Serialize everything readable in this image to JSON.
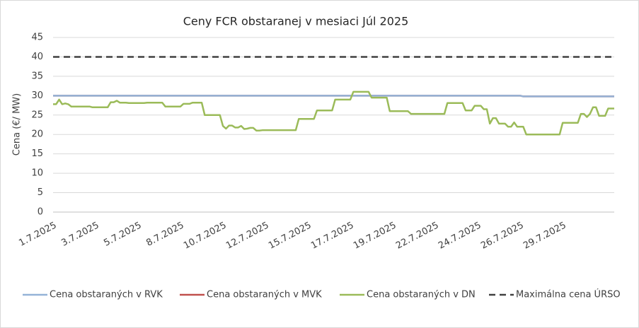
{
  "chart_data": {
    "type": "line",
    "title": "Ceny FCR obstaranej v mesiaci Júl 2025",
    "y_label": "Cena (€/ MW)",
    "ylim": [
      0,
      45
    ],
    "yticks": [
      0,
      5,
      10,
      15,
      20,
      25,
      30,
      35,
      40,
      45
    ],
    "grid": true,
    "legend": "bottom",
    "x": [
      "1.7.2025",
      null,
      null,
      null,
      null,
      null,
      null,
      null,
      null,
      null,
      null,
      null,
      null,
      null,
      "3.7.2025",
      null,
      null,
      null,
      null,
      null,
      null,
      null,
      null,
      null,
      null,
      null,
      null,
      null,
      "5.7.2025",
      null,
      null,
      null,
      null,
      null,
      null,
      null,
      null,
      null,
      null,
      null,
      null,
      null,
      "8.7.2025",
      null,
      null,
      null,
      null,
      null,
      null,
      null,
      null,
      null,
      null,
      null,
      null,
      null,
      "10.7.2025",
      null,
      null,
      null,
      null,
      null,
      null,
      null,
      null,
      null,
      null,
      null,
      null,
      null,
      "12.7.2025",
      null,
      null,
      null,
      null,
      null,
      null,
      null,
      null,
      null,
      null,
      null,
      null,
      null,
      "15.7.2025",
      null,
      null,
      null,
      null,
      null,
      null,
      null,
      null,
      null,
      null,
      null,
      null,
      null,
      "17.7.2025",
      null,
      null,
      null,
      null,
      null,
      null,
      null,
      null,
      null,
      null,
      null,
      null,
      null,
      "19.7.2025",
      null,
      null,
      null,
      null,
      null,
      null,
      null,
      null,
      null,
      null,
      null,
      null,
      null,
      "22.7.2025",
      null,
      null,
      null,
      null,
      null,
      null,
      null,
      null,
      null,
      null,
      null,
      null,
      null,
      "24.7.2025",
      null,
      null,
      null,
      null,
      null,
      null,
      null,
      null,
      null,
      null,
      null,
      null,
      null,
      "26.7.2025",
      null,
      null,
      null,
      null,
      null,
      null,
      null,
      null,
      null,
      null,
      null,
      null,
      null,
      "29.7.2025",
      null,
      null,
      null,
      null,
      null,
      null,
      null,
      null,
      null,
      null,
      null,
      null,
      null,
      null,
      null,
      null,
      null
    ],
    "series": [
      {
        "name": "Cena obstaraných v RVK",
        "color": "#95b3d7",
        "style": "solid",
        "values": [
          30,
          30,
          30,
          30,
          30,
          30,
          30,
          30,
          30,
          30,
          30,
          30,
          30,
          30,
          30,
          30,
          30,
          30,
          30,
          30,
          30,
          30,
          30,
          30,
          30,
          30,
          30,
          30,
          30,
          30,
          30,
          30,
          30,
          30,
          30,
          30,
          30,
          30,
          30,
          30,
          30,
          30,
          30,
          30,
          30,
          30,
          30,
          30,
          30,
          30,
          30,
          30,
          30,
          30,
          30,
          30,
          30,
          30,
          30,
          30,
          30,
          30,
          30,
          30,
          30,
          30,
          30,
          30,
          30,
          30,
          30,
          30,
          30,
          30,
          30,
          30,
          30,
          30,
          30,
          30,
          30,
          30,
          30,
          30,
          30,
          30,
          30,
          30,
          30,
          30,
          30,
          30,
          30,
          30,
          30,
          30,
          30,
          30,
          30,
          30,
          30,
          30,
          30,
          30,
          30,
          30,
          30,
          30,
          30,
          30,
          30,
          30,
          30,
          30,
          30,
          30,
          30,
          30,
          30,
          30,
          30,
          30,
          30,
          30,
          30,
          30,
          30,
          30,
          30,
          30,
          30,
          30,
          30,
          30,
          30,
          30,
          30,
          30,
          30,
          30,
          30,
          30,
          30,
          30,
          30,
          30,
          30,
          30,
          30,
          30,
          30,
          30,
          30,
          30,
          30,
          29.8,
          29.8,
          29.8,
          29.8,
          29.8,
          29.8,
          29.8,
          29.8,
          29.8,
          29.8,
          29.8,
          29.8,
          29.8,
          29.8,
          29.8,
          29.8,
          29.8,
          29.8,
          29.8,
          29.8,
          29.8,
          29.8,
          29.8,
          29.8,
          29.8,
          29.8,
          29.8,
          29.8,
          29.8,
          29.8,
          29.8
        ]
      },
      {
        "name": "Cena obstaraných v MVK",
        "color": "#c0504d",
        "style": "solid",
        "values": [
          30,
          30,
          30,
          30,
          30,
          30,
          30,
          30,
          30,
          30,
          30,
          30,
          30,
          30,
          30,
          30,
          30,
          30,
          30,
          30,
          30,
          30,
          30,
          30,
          30,
          30,
          30,
          30,
          30,
          30,
          30,
          30,
          30,
          30,
          30,
          30,
          30,
          30,
          30,
          30,
          30,
          30,
          30,
          30,
          30,
          30,
          30,
          30,
          30,
          30,
          30,
          30,
          30,
          30,
          30,
          30,
          30,
          30,
          30,
          30,
          30,
          30,
          30,
          30,
          30,
          30,
          30,
          30,
          30,
          30,
          30,
          30,
          30,
          30,
          30,
          30,
          30,
          30,
          30,
          30,
          30,
          30,
          30,
          30,
          30,
          30,
          30,
          30,
          30,
          30,
          30,
          30,
          30,
          30,
          30,
          30,
          30,
          30,
          30,
          30,
          30,
          30,
          30,
          30,
          30,
          30,
          30,
          30,
          30,
          30,
          30,
          30,
          30,
          30,
          30,
          30,
          30,
          30,
          30,
          30,
          30,
          30,
          30,
          30,
          30,
          30,
          30,
          30,
          30,
          30,
          30,
          30,
          30,
          30,
          30,
          30,
          30,
          30,
          30,
          30,
          30,
          30,
          30,
          30,
          30,
          30,
          30,
          30,
          30,
          30,
          30,
          30,
          30,
          30,
          30,
          29.8,
          29.8,
          29.8,
          29.8,
          29.8,
          29.8,
          29.8,
          29.8,
          29.8,
          29.8,
          29.8,
          29.8,
          29.8,
          29.8,
          29.8,
          29.8,
          29.8,
          29.8,
          29.8,
          29.8,
          29.8,
          29.8,
          29.8,
          29.8,
          29.8,
          29.8,
          29.8,
          29.8,
          29.8,
          29.8,
          29.8
        ]
      },
      {
        "name": "Cena obstaraných v DN",
        "color": "#9bbb59",
        "style": "solid",
        "values": [
          27.8,
          27.8,
          29,
          27.8,
          28,
          27.8,
          27.2,
          27.2,
          27.2,
          27.2,
          27.2,
          27.2,
          27.2,
          27,
          27,
          27,
          27,
          27,
          27,
          28.3,
          28.3,
          28.7,
          28.2,
          28.2,
          28.2,
          28.1,
          28.1,
          28.1,
          28.1,
          28.1,
          28.1,
          28.2,
          28.2,
          28.2,
          28.2,
          28.2,
          28.2,
          27.2,
          27.2,
          27.2,
          27.2,
          27.2,
          27.2,
          27.9,
          27.9,
          27.9,
          28.2,
          28.2,
          28.2,
          28.2,
          25,
          25,
          25,
          25,
          25,
          25,
          22.2,
          21.5,
          22.3,
          22.3,
          21.8,
          21.8,
          22.2,
          21.4,
          21.5,
          21.7,
          21.7,
          21,
          21,
          21.1,
          21.1,
          21.1,
          21.1,
          21.1,
          21.1,
          21.1,
          21.1,
          21.1,
          21.1,
          21.1,
          21.1,
          24,
          24,
          24,
          24,
          24,
          24,
          26.2,
          26.2,
          26.2,
          26.2,
          26.2,
          26.2,
          29,
          29,
          29,
          29,
          29,
          29,
          31,
          31,
          31,
          31,
          31,
          31,
          29.5,
          29.5,
          29.5,
          29.5,
          29.5,
          29.5,
          26,
          26,
          26,
          26,
          26,
          26,
          26,
          25.3,
          25.3,
          25.3,
          25.3,
          25.3,
          25.3,
          25.3,
          25.3,
          25.3,
          25.3,
          25.3,
          25.3,
          28.1,
          28.1,
          28.1,
          28.1,
          28.1,
          28.1,
          26.2,
          26.2,
          26.2,
          27.4,
          27.4,
          27.4,
          26.5,
          26.5,
          22.8,
          24.2,
          24.2,
          22.8,
          22.8,
          22.8,
          22,
          22,
          23.1,
          22,
          22,
          22,
          20,
          20,
          20,
          20,
          20,
          20,
          20,
          20,
          20,
          20,
          20,
          20,
          23,
          23,
          23,
          23,
          23,
          23,
          25.3,
          25.3,
          24.5,
          25.3,
          27,
          27,
          24.8,
          24.8,
          24.8,
          26.7,
          26.7,
          26.7
        ]
      },
      {
        "name": "Maximálna cena ÚRSO",
        "color": "#404040",
        "style": "dashed",
        "values": [
          40,
          40,
          40,
          40,
          40,
          40,
          40,
          40,
          40,
          40,
          40,
          40,
          40,
          40,
          40,
          40,
          40,
          40,
          40,
          40,
          40,
          40,
          40,
          40,
          40,
          40,
          40,
          40,
          40,
          40,
          40,
          40,
          40,
          40,
          40,
          40,
          40,
          40,
          40,
          40,
          40,
          40,
          40,
          40,
          40,
          40,
          40,
          40,
          40,
          40,
          40,
          40,
          40,
          40,
          40,
          40,
          40,
          40,
          40,
          40,
          40,
          40,
          40,
          40,
          40,
          40,
          40,
          40,
          40,
          40,
          40,
          40,
          40,
          40,
          40,
          40,
          40,
          40,
          40,
          40,
          40,
          40,
          40,
          40,
          40,
          40,
          40,
          40,
          40,
          40,
          40,
          40,
          40,
          40,
          40,
          40,
          40,
          40,
          40,
          40,
          40,
          40,
          40,
          40,
          40,
          40,
          40,
          40,
          40,
          40,
          40,
          40,
          40,
          40,
          40,
          40,
          40,
          40,
          40,
          40,
          40,
          40,
          40,
          40,
          40,
          40,
          40,
          40,
          40,
          40,
          40,
          40,
          40,
          40,
          40,
          40,
          40,
          40,
          40,
          40,
          40,
          40,
          40,
          40,
          40,
          40,
          40,
          40,
          40,
          40,
          40,
          40,
          40,
          40,
          40,
          40,
          40,
          40,
          40,
          40,
          40,
          40,
          40,
          40,
          40,
          40,
          40,
          40,
          40,
          40,
          40,
          40,
          40,
          40,
          40,
          40,
          40,
          40,
          40,
          40,
          40,
          40,
          40,
          40,
          40,
          40
        ]
      }
    ]
  }
}
